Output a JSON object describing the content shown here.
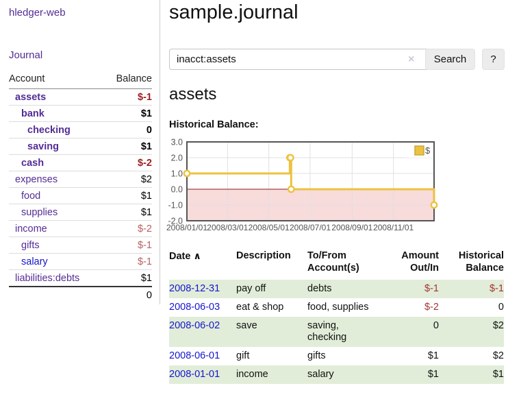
{
  "sidebar": {
    "brand": "hledger-web",
    "nav": {
      "journal": "Journal"
    },
    "accounts_table": {
      "headers": {
        "account": "Account",
        "balance": "Balance"
      },
      "rows": [
        {
          "name": "assets",
          "indent": 1,
          "bold": true,
          "link_color": "purple",
          "balance": "$-1",
          "balance_style": "neg-bold"
        },
        {
          "name": "bank",
          "indent": 2,
          "bold": true,
          "link_color": "purple",
          "balance": "$1",
          "balance_style": "pos-bold"
        },
        {
          "name": "checking",
          "indent": 3,
          "bold": true,
          "link_color": "purple",
          "balance": "0",
          "balance_style": "pos-bold"
        },
        {
          "name": "saving",
          "indent": 3,
          "bold": true,
          "link_color": "purple",
          "balance": "$1",
          "balance_style": "pos-bold"
        },
        {
          "name": "cash",
          "indent": 2,
          "bold": true,
          "link_color": "purple",
          "balance": "$-2",
          "balance_style": "neg-bold"
        },
        {
          "name": "expenses",
          "indent": 1,
          "bold": false,
          "link_color": "purple",
          "balance": "$2",
          "balance_style": "pos"
        },
        {
          "name": "food",
          "indent": 2,
          "bold": false,
          "link_color": "purple",
          "balance": "$1",
          "balance_style": "pos"
        },
        {
          "name": "supplies",
          "indent": 2,
          "bold": false,
          "link_color": "purple",
          "balance": "$1",
          "balance_style": "pos"
        },
        {
          "name": "income",
          "indent": 1,
          "bold": false,
          "link_color": "purple",
          "balance": "$-2",
          "balance_style": "neg"
        },
        {
          "name": "gifts",
          "indent": 2,
          "bold": false,
          "link_color": "purple",
          "balance": "$-1",
          "balance_style": "neg"
        },
        {
          "name": "salary",
          "indent": 2,
          "bold": false,
          "link_color": "blue",
          "balance": "$-1",
          "balance_style": "neg"
        },
        {
          "name": "liabilities:debts",
          "indent": 1,
          "bold": false,
          "link_color": "purple",
          "balance": "$1",
          "balance_style": "pos"
        }
      ],
      "total": "0"
    }
  },
  "header": {
    "title": "sample.journal"
  },
  "search": {
    "value": "inacct:assets",
    "clear_icon": "×",
    "button": "Search",
    "help_button": "?"
  },
  "account_page": {
    "title": "assets",
    "chart_label": "Historical Balance:"
  },
  "chart_data": {
    "type": "line",
    "title": "Historical Balance",
    "step": true,
    "series": [
      {
        "name": "$",
        "color": "#edc240",
        "points": [
          [
            "2008-01-01",
            1
          ],
          [
            "2008-06-01",
            2
          ],
          [
            "2008-06-02",
            2
          ],
          [
            "2008-06-03",
            0
          ],
          [
            "2008-12-31",
            -1
          ]
        ]
      }
    ],
    "xlim": [
      "2008-01-01",
      "2008-12-31"
    ],
    "ylim": [
      -2,
      3
    ],
    "x_ticks": [
      {
        "date": "2008-01-01",
        "label": "2008/01/01"
      },
      {
        "date": "2008-03-01",
        "label": "2008/03/01"
      },
      {
        "date": "2008-05-01",
        "label": "2008/05/01"
      },
      {
        "date": "2008-07-01",
        "label": "2008/07/01"
      },
      {
        "date": "2008-09-01",
        "label": "2008/09/01"
      },
      {
        "date": "2008-11-01",
        "label": "2008/11/01"
      }
    ],
    "y_ticks": [
      {
        "value": 3,
        "label": "3.0"
      },
      {
        "value": 2,
        "label": "2.0"
      },
      {
        "value": 1,
        "label": "1.0"
      },
      {
        "value": 0,
        "label": "0.0"
      },
      {
        "value": -1,
        "label": "-1.0"
      },
      {
        "value": -2,
        "label": "-2.0"
      }
    ],
    "grid": true,
    "legend": {
      "label": "$",
      "position": "top-right"
    },
    "colors": {
      "line": "#edc240",
      "marker_fill": "#ffffff",
      "negative_region": "#f8dbdb",
      "zero_line": "#8b1a1a",
      "gridline": "#e0e0e0",
      "border": "#545454",
      "tick_text": "#545454"
    }
  },
  "register": {
    "headers": {
      "date": "Date",
      "sort_icon": "∧",
      "description": "Description",
      "tofrom_1": "To/From",
      "tofrom_2": "Account(s)",
      "amount_1": "Amount",
      "amount_2": "Out/In",
      "balance_1": "Historical",
      "balance_2": "Balance"
    },
    "rows": [
      {
        "date": "2008-12-31",
        "description": "pay off",
        "accounts": "debts",
        "amount": "$-1",
        "amount_neg": true,
        "balance": "$-1",
        "balance_neg": true,
        "shade": true
      },
      {
        "date": "2008-06-03",
        "description": "eat & shop",
        "accounts": "food, supplies",
        "amount": "$-2",
        "amount_neg": true,
        "balance": "0",
        "balance_neg": false,
        "shade": false
      },
      {
        "date": "2008-06-02",
        "description": "save",
        "accounts": "saving, checking",
        "amount": "0",
        "amount_neg": false,
        "balance": "$2",
        "balance_neg": false,
        "shade": true
      },
      {
        "date": "2008-06-01",
        "description": "gift",
        "accounts": "gifts",
        "amount": "$1",
        "amount_neg": false,
        "balance": "$2",
        "balance_neg": false,
        "shade": false
      },
      {
        "date": "2008-01-01",
        "description": "income",
        "accounts": "salary",
        "amount": "$1",
        "amount_neg": false,
        "balance": "$1",
        "balance_neg": false,
        "shade": true
      }
    ]
  }
}
